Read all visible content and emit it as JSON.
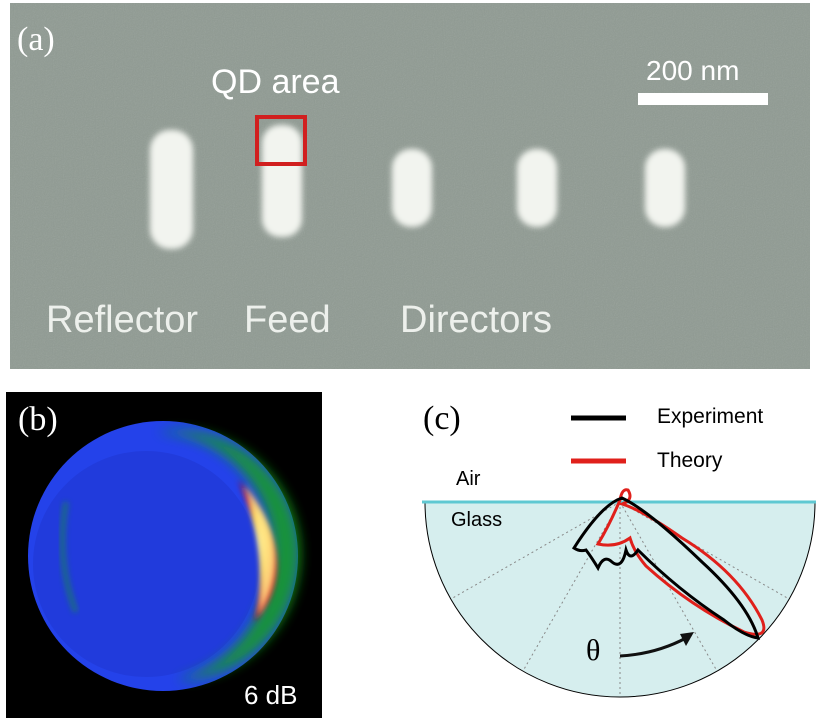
{
  "panel_a": {
    "label": "(a)",
    "annotation": "QD area",
    "scale_bar_label": "200 nm",
    "element_labels": [
      "Reflector",
      "Feed",
      "Directors"
    ]
  },
  "panel_b": {
    "label": "(b)",
    "scale_label": "6 dB"
  },
  "panel_c": {
    "label": "(c)",
    "legend": [
      {
        "name": "Experiment",
        "color": "#000000"
      },
      {
        "name": "Theory",
        "color": "#e0201b"
      }
    ],
    "medium_upper": "Air",
    "medium_lower": "Glass",
    "angle_symbol": "θ"
  },
  "colors": {
    "sem_background": "#8f9a92",
    "qd_box": "#d11f1f",
    "glass_fill": "#d6eeee",
    "interface_line": "#5fc8d2",
    "colorbar": [
      "#000000",
      "#1e2bd6",
      "#2a55ff",
      "#14a814",
      "#e11b1b",
      "#ffa500",
      "#ffff88"
    ]
  }
}
